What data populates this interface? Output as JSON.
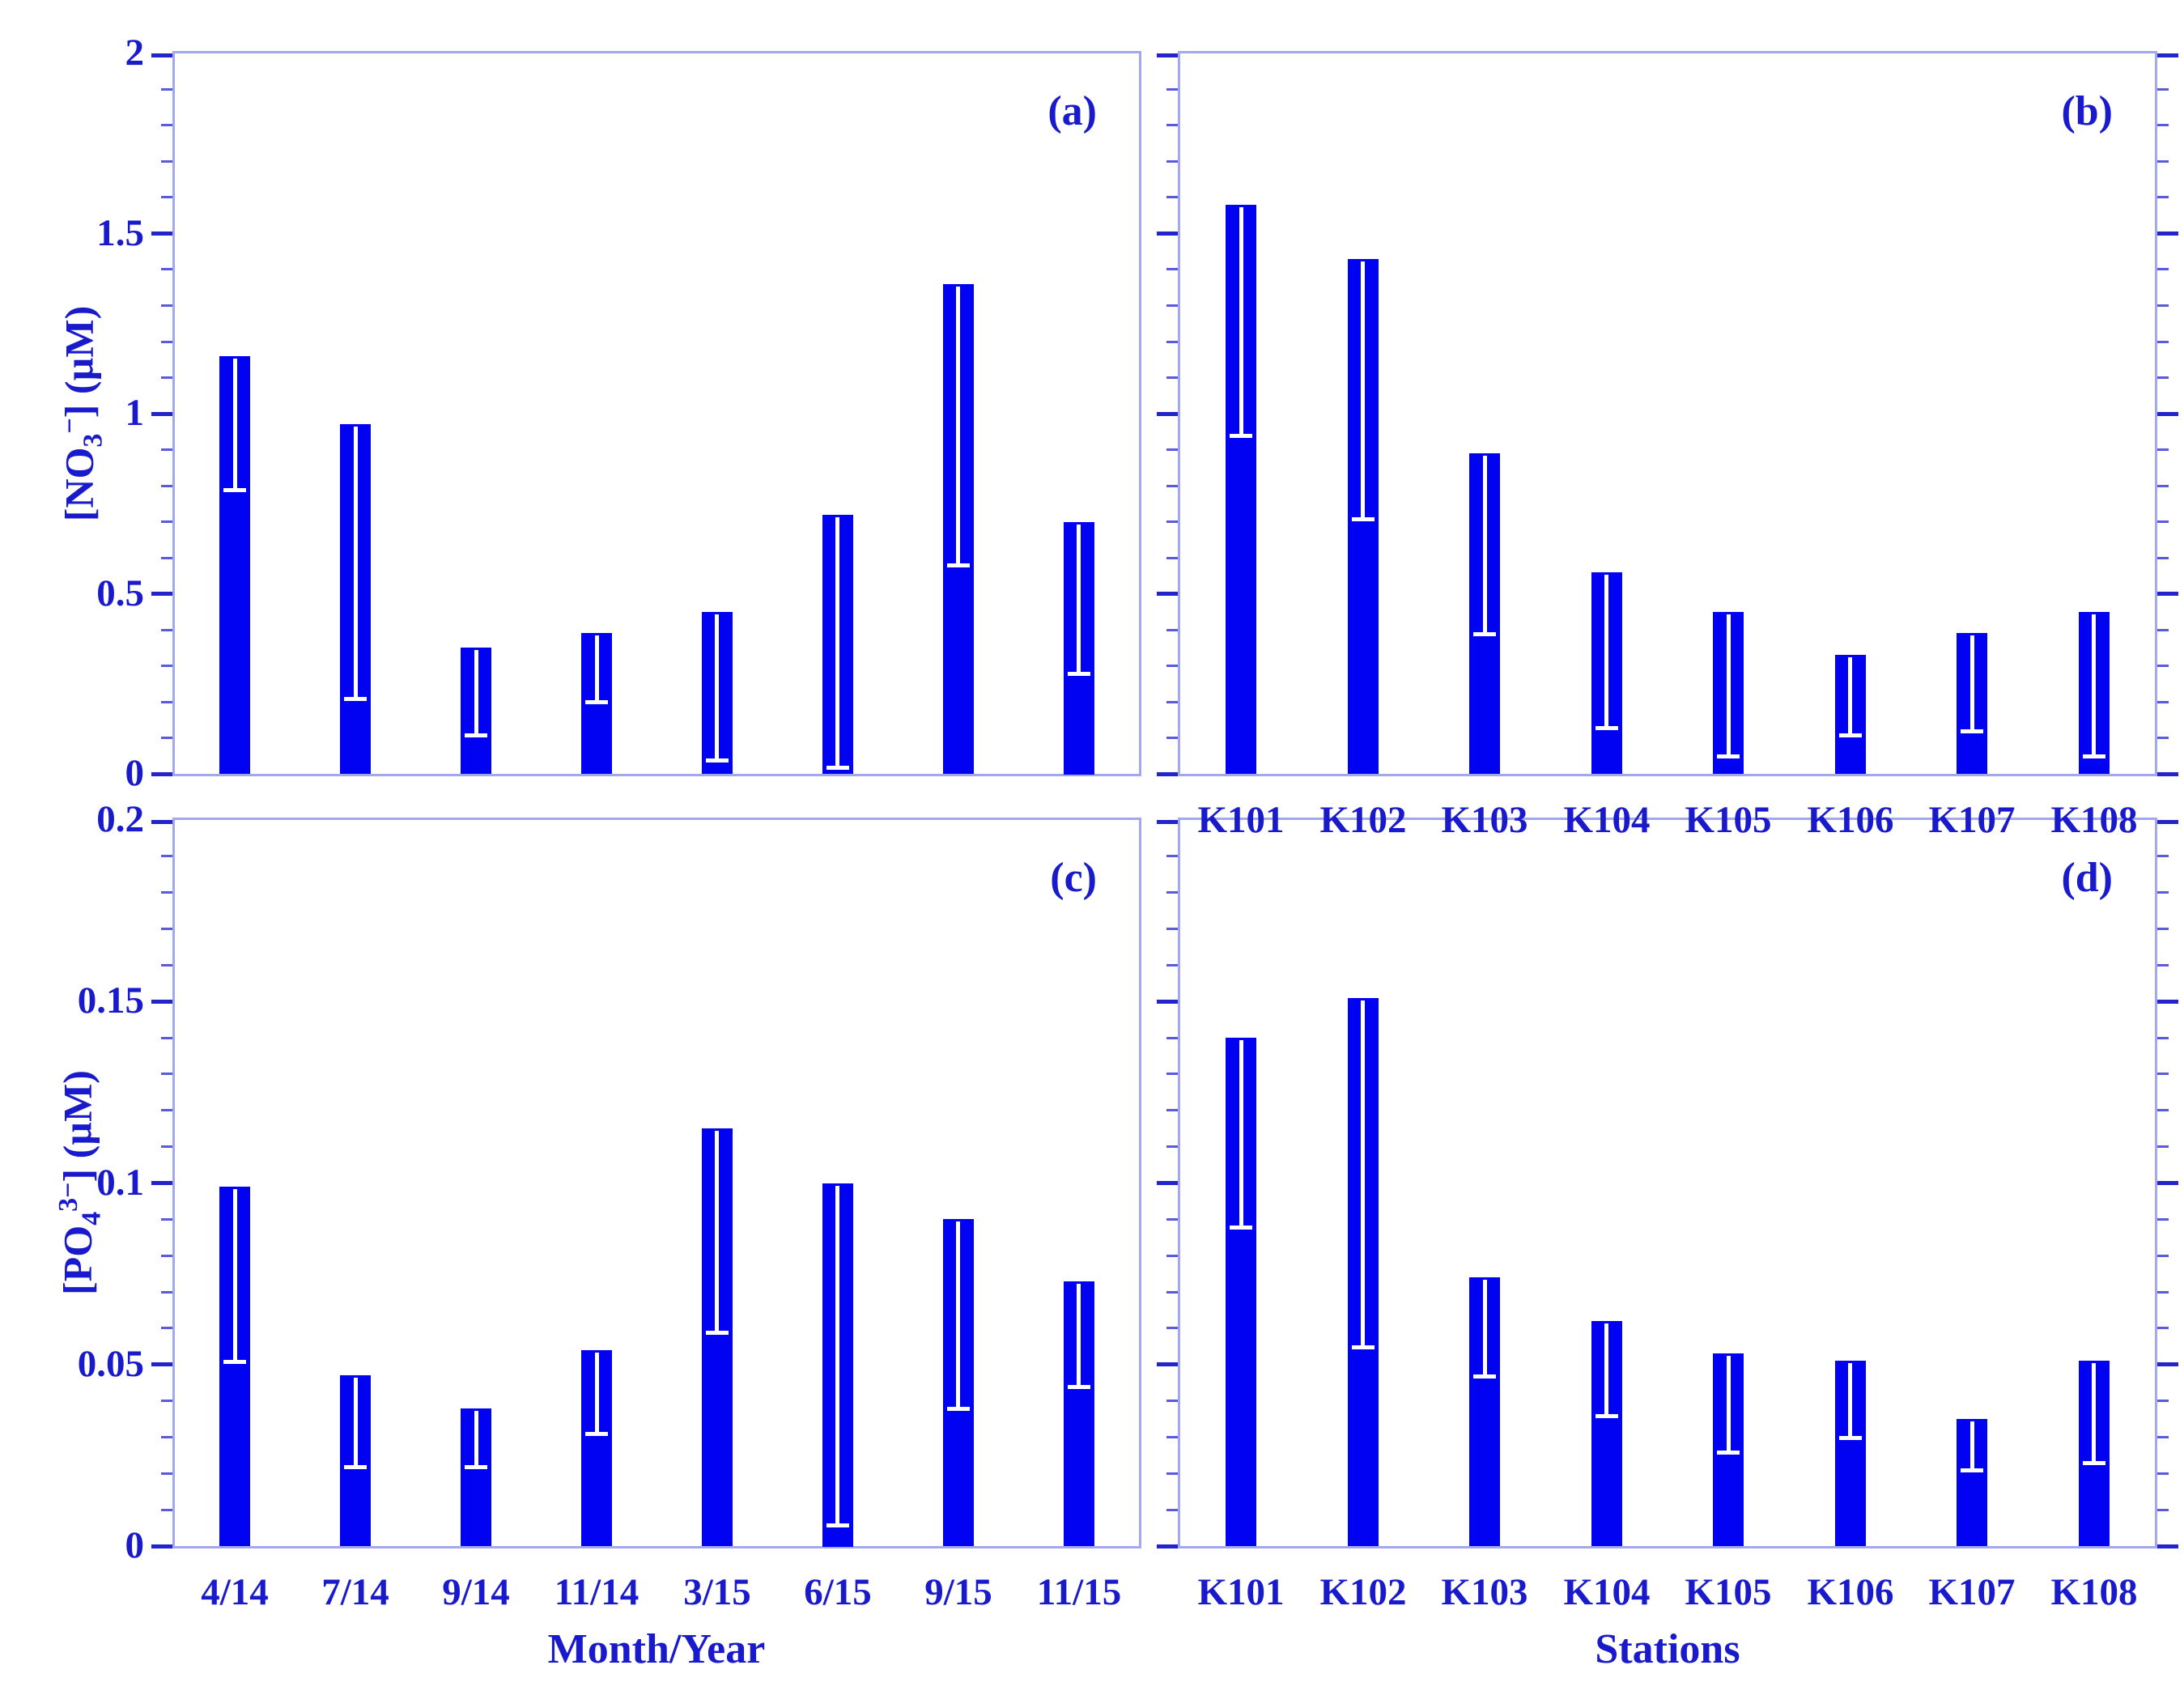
{
  "figure": {
    "background": "#ffffff",
    "text_color": "#1a1acd",
    "bar_color": "#0202f2",
    "frame_color": "#a2a7ef",
    "major_tick_color": "#2424cd",
    "minor_tick_color": "#5a5ada",
    "error_bar_color": "#ffffff"
  },
  "labels": {
    "no3": {
      "pre": "[NO",
      "sub": "3",
      "sup": "−",
      "post": "] (µM)"
    },
    "po4": {
      "pre": "[PO",
      "sub": "4",
      "sup": "3−",
      "post": "] (µM)"
    },
    "xtitle_left": "Month/Year",
    "xtitle_right": "Stations"
  },
  "chart_data": [
    {
      "type": "bar",
      "panel_label": "(a)",
      "title": "",
      "xlabel": "",
      "ylabel": "[NO3-] (uM)",
      "categories": [
        "4/14",
        "7/14",
        "9/14",
        "11/14",
        "3/15",
        "6/15",
        "9/15",
        "11/15"
      ],
      "values": [
        1.16,
        0.97,
        0.35,
        0.39,
        0.45,
        0.72,
        1.36,
        0.7
      ],
      "error_low": [
        0.78,
        0.2,
        0.1,
        0.19,
        0.03,
        0.01,
        0.57,
        0.27
      ],
      "error_style": "white drop line from bar top with cap at lower end",
      "ylim": [
        0,
        2
      ],
      "ytick_labels": [
        "0",
        "0.5",
        "1",
        "1.5",
        "2"
      ],
      "ytick_values": [
        0,
        0.5,
        1,
        1.5,
        2
      ],
      "minor_tick_step": 0.1,
      "show_x_labels": false,
      "show_y_labels": true,
      "grid": false,
      "legend": "none"
    },
    {
      "type": "bar",
      "panel_label": "(b)",
      "title": "",
      "xlabel": "Stations",
      "ylabel": "[NO3-] (uM)",
      "categories": [
        "K101",
        "K102",
        "K103",
        "K104",
        "K105",
        "K106",
        "K107",
        "K108"
      ],
      "values": [
        1.58,
        1.43,
        0.89,
        0.56,
        0.45,
        0.33,
        0.39,
        0.45
      ],
      "error_low": [
        0.93,
        0.7,
        0.38,
        0.12,
        0.04,
        0.1,
        0.11,
        0.04
      ],
      "error_style": "white drop line from bar top with cap at lower end",
      "ylim": [
        0,
        2
      ],
      "ytick_labels": [
        "0",
        "0.5",
        "1",
        "1.5",
        "2"
      ],
      "ytick_values": [
        0,
        0.5,
        1,
        1.5,
        2
      ],
      "minor_tick_step": 0.1,
      "show_x_labels": true,
      "show_y_labels": false,
      "grid": false,
      "legend": "none"
    },
    {
      "type": "bar",
      "panel_label": "(c)",
      "title": "",
      "xlabel": "Month/Year",
      "ylabel": "[PO4 3-] (uM)",
      "categories": [
        "4/14",
        "7/14",
        "9/14",
        "11/14",
        "3/15",
        "6/15",
        "9/15",
        "11/15"
      ],
      "values": [
        0.099,
        0.047,
        0.038,
        0.054,
        0.115,
        0.1,
        0.09,
        0.073
      ],
      "error_low": [
        0.05,
        0.021,
        0.021,
        0.03,
        0.058,
        0.005,
        0.037,
        0.043
      ],
      "error_style": "white drop line from bar top with cap at lower end",
      "ylim": [
        0,
        0.2
      ],
      "ytick_labels": [
        "0",
        "0.05",
        "0.1",
        "0.15",
        "0.2"
      ],
      "ytick_values": [
        0,
        0.05,
        0.1,
        0.15,
        0.2
      ],
      "minor_tick_step": 0.01,
      "show_x_labels": true,
      "show_y_labels": true,
      "grid": false,
      "legend": "none"
    },
    {
      "type": "bar",
      "panel_label": "(d)",
      "title": "",
      "xlabel": "Stations",
      "ylabel": "[PO4 3-] (uM)",
      "categories": [
        "K101",
        "K102",
        "K103",
        "K104",
        "K105",
        "K106",
        "K107",
        "K108"
      ],
      "values": [
        0.14,
        0.151,
        0.074,
        0.062,
        0.053,
        0.051,
        0.035,
        0.051
      ],
      "error_low": [
        0.087,
        0.054,
        0.046,
        0.035,
        0.025,
        0.029,
        0.02,
        0.022
      ],
      "error_style": "white drop line from bar top with cap at lower end",
      "ylim": [
        0,
        0.2
      ],
      "ytick_labels": [
        "0",
        "0.05",
        "0.1",
        "0.15",
        "0.2"
      ],
      "ytick_values": [
        0,
        0.05,
        0.1,
        0.15,
        0.2
      ],
      "minor_tick_step": 0.01,
      "show_x_labels": true,
      "show_y_labels": false,
      "grid": false,
      "legend": "none"
    }
  ]
}
